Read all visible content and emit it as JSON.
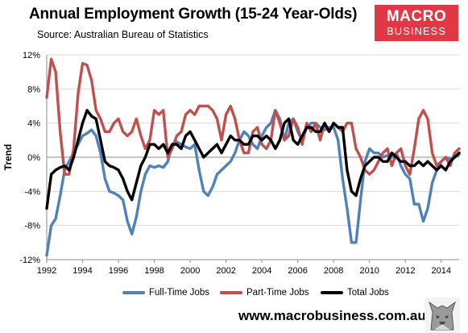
{
  "header": {
    "title": "Annual Employment Growth (15-24 Year-Olds)",
    "subtitle": "Source: Australian Bureau of Statistics",
    "logo_line1": "MACRO",
    "logo_line2": "BUSINESS"
  },
  "footer": {
    "website": "www.macrobusiness.com.au"
  },
  "colors": {
    "full_time": "#4f81bd",
    "part_time": "#c0504d",
    "total": "#000000",
    "logo_bg": "#e23744"
  },
  "chart_data": {
    "type": "line",
    "title": "Annual Employment Growth (15-24 Year-Olds)",
    "subtitle": "Source: Australian Bureau of Statistics",
    "xlabel": "",
    "ylabel": "Trend",
    "xlim": [
      1992,
      2015
    ],
    "ylim": [
      -12,
      12
    ],
    "x_ticks": [
      1992,
      1994,
      1996,
      1998,
      2000,
      2002,
      2004,
      2006,
      2008,
      2010,
      2012,
      2014
    ],
    "x_tick_labels": [
      "1992",
      "1994",
      "1996",
      "1998",
      "2000",
      "2002",
      "2004",
      "2006",
      "2008",
      "2010",
      "2012",
      "2014"
    ],
    "y_ticks": [
      -12,
      -8,
      -4,
      0,
      4,
      8,
      12
    ],
    "y_tick_labels": [
      "-12%",
      "-8%",
      "-4%",
      "0%",
      "4%",
      "8%",
      "12%"
    ],
    "grid": "horizontal",
    "legend_position": "bottom",
    "series": [
      {
        "name": "Full-Time Jobs",
        "color": "#4f81bd",
        "x": [
          1992.0,
          1992.25,
          1992.5,
          1992.75,
          1993.0,
          1993.25,
          1993.5,
          1993.75,
          1994.0,
          1994.25,
          1994.5,
          1994.75,
          1995.0,
          1995.25,
          1995.5,
          1995.75,
          1996.0,
          1996.25,
          1996.5,
          1996.75,
          1997.0,
          1997.25,
          1997.5,
          1997.75,
          1998.0,
          1998.25,
          1998.5,
          1998.75,
          1999.0,
          1999.25,
          1999.5,
          1999.75,
          2000.0,
          2000.25,
          2000.5,
          2000.75,
          2001.0,
          2001.25,
          2001.5,
          2001.75,
          2002.0,
          2002.25,
          2002.5,
          2002.75,
          2003.0,
          2003.25,
          2003.5,
          2003.75,
          2004.0,
          2004.25,
          2004.5,
          2004.75,
          2005.0,
          2005.25,
          2005.5,
          2005.75,
          2006.0,
          2006.25,
          2006.5,
          2006.75,
          2007.0,
          2007.25,
          2007.5,
          2007.75,
          2008.0,
          2008.25,
          2008.5,
          2008.75,
          2009.0,
          2009.25,
          2009.5,
          2009.75,
          2010.0,
          2010.25,
          2010.5,
          2010.75,
          2011.0,
          2011.25,
          2011.5,
          2011.75,
          2012.0,
          2012.25,
          2012.5,
          2012.75,
          2013.0,
          2013.25,
          2013.5,
          2013.75,
          2014.0,
          2014.25,
          2014.5,
          2014.75,
          2015.0
        ],
        "values": [
          -11.5,
          -8.0,
          -7.2,
          -4.5,
          -1.5,
          -0.5,
          0.5,
          1.5,
          2.5,
          2.8,
          3.2,
          2.5,
          0.5,
          -2.5,
          -4.0,
          -4.2,
          -4.5,
          -5.0,
          -7.5,
          -9.0,
          -7.0,
          -4.0,
          -2.0,
          -1.0,
          -1.2,
          -1.0,
          -1.2,
          -0.5,
          1.5,
          1.8,
          1.5,
          1.2,
          1.0,
          1.5,
          -1.5,
          -4.0,
          -4.5,
          -3.5,
          -2.0,
          -1.5,
          -1.0,
          -0.5,
          0.5,
          2.0,
          3.0,
          2.5,
          1.5,
          1.0,
          2.5,
          3.5,
          4.0,
          5.5,
          4.5,
          2.0,
          4.0,
          4.5,
          3.0,
          2.0,
          3.5,
          4.0,
          4.0,
          3.5,
          3.2,
          3.5,
          3.5,
          2.0,
          -2.5,
          -6.0,
          -10.0,
          -10.0,
          -5.0,
          -0.5,
          1.0,
          0.5,
          0.5,
          0.0,
          0.2,
          0.0,
          0.5,
          -1.0,
          -2.0,
          -2.5,
          -5.5,
          -5.5,
          -7.5,
          -6.0,
          -3.0,
          -1.5,
          -0.5,
          0.0,
          -0.2,
          0.0,
          0.3
        ]
      },
      {
        "name": "Part-Time Jobs",
        "color": "#c0504d",
        "x": [
          1992.0,
          1992.25,
          1992.5,
          1992.75,
          1993.0,
          1993.25,
          1993.5,
          1993.75,
          1994.0,
          1994.25,
          1994.5,
          1994.75,
          1995.0,
          1995.25,
          1995.5,
          1995.75,
          1996.0,
          1996.25,
          1996.5,
          1996.75,
          1997.0,
          1997.25,
          1997.5,
          1997.75,
          1998.0,
          1998.25,
          1998.5,
          1998.75,
          1999.0,
          1999.25,
          1999.5,
          1999.75,
          2000.0,
          2000.25,
          2000.5,
          2000.75,
          2001.0,
          2001.25,
          2001.5,
          2001.75,
          2002.0,
          2002.25,
          2002.5,
          2002.75,
          2003.0,
          2003.25,
          2003.5,
          2003.75,
          2004.0,
          2004.25,
          2004.5,
          2004.75,
          2005.0,
          2005.25,
          2005.5,
          2005.75,
          2006.0,
          2006.25,
          2006.5,
          2006.75,
          2007.0,
          2007.25,
          2007.5,
          2007.75,
          2008.0,
          2008.25,
          2008.5,
          2008.75,
          2009.0,
          2009.25,
          2009.5,
          2009.75,
          2010.0,
          2010.25,
          2010.5,
          2010.75,
          2011.0,
          2011.25,
          2011.5,
          2011.75,
          2012.0,
          2012.25,
          2012.5,
          2012.75,
          2013.0,
          2013.25,
          2013.5,
          2013.75,
          2014.0,
          2014.25,
          2014.5,
          2014.75,
          2015.0
        ],
        "values": [
          7.0,
          11.5,
          10.0,
          3.0,
          -2.0,
          -2.0,
          1.0,
          7.5,
          11.0,
          10.8,
          9.0,
          5.5,
          4.5,
          3.0,
          3.0,
          4.0,
          4.5,
          3.0,
          2.5,
          3.0,
          4.5,
          2.5,
          1.0,
          2.0,
          5.5,
          5.0,
          5.5,
          0.0,
          1.0,
          2.5,
          3.0,
          5.0,
          5.5,
          5.0,
          6.0,
          6.0,
          6.0,
          5.5,
          4.5,
          2.0,
          5.0,
          6.0,
          4.5,
          2.0,
          0.5,
          0.5,
          3.0,
          3.5,
          1.5,
          1.0,
          2.0,
          5.5,
          4.0,
          2.0,
          2.5,
          4.5,
          3.5,
          1.5,
          4.0,
          3.0,
          4.0,
          2.0,
          4.0,
          3.0,
          4.0,
          3.5,
          3.0,
          4.0,
          4.0,
          1.0,
          0.0,
          -1.5,
          -2.0,
          -1.5,
          -0.5,
          0.5,
          1.0,
          -1.0,
          0.5,
          1.0,
          -1.0,
          -2.0,
          1.0,
          4.5,
          5.5,
          4.5,
          0.5,
          -1.0,
          -0.5,
          0.0,
          -1.0,
          0.5,
          1.0
        ]
      },
      {
        "name": "Total Jobs",
        "color": "#000000",
        "x": [
          1992.0,
          1992.25,
          1992.5,
          1992.75,
          1993.0,
          1993.25,
          1993.5,
          1993.75,
          1994.0,
          1994.25,
          1994.5,
          1994.75,
          1995.0,
          1995.25,
          1995.5,
          1995.75,
          1996.0,
          1996.25,
          1996.5,
          1996.75,
          1997.0,
          1997.25,
          1997.5,
          1997.75,
          1998.0,
          1998.25,
          1998.5,
          1998.75,
          1999.0,
          1999.25,
          1999.5,
          1999.75,
          2000.0,
          2000.25,
          2000.5,
          2000.75,
          2001.0,
          2001.25,
          2001.5,
          2001.75,
          2002.0,
          2002.25,
          2002.5,
          2002.75,
          2003.0,
          2003.25,
          2003.5,
          2003.75,
          2004.0,
          2004.25,
          2004.5,
          2004.75,
          2005.0,
          2005.25,
          2005.5,
          2005.75,
          2006.0,
          2006.25,
          2006.5,
          2006.75,
          2007.0,
          2007.25,
          2007.5,
          2007.75,
          2008.0,
          2008.25,
          2008.5,
          2008.75,
          2009.0,
          2009.25,
          2009.5,
          2009.75,
          2010.0,
          2010.25,
          2010.5,
          2010.75,
          2011.0,
          2011.25,
          2011.5,
          2011.75,
          2012.0,
          2012.25,
          2012.5,
          2012.75,
          2013.0,
          2013.25,
          2013.5,
          2013.75,
          2014.0,
          2014.25,
          2014.5,
          2014.75,
          2015.0
        ],
        "values": [
          -6.0,
          -2.0,
          -1.5,
          -1.2,
          -1.0,
          -1.5,
          0.0,
          2.0,
          4.0,
          5.5,
          4.8,
          4.5,
          2.0,
          -0.5,
          -1.0,
          -1.2,
          -1.5,
          -2.5,
          -4.0,
          -5.0,
          -3.0,
          -1.0,
          0.0,
          1.5,
          1.5,
          1.0,
          1.5,
          0.5,
          1.5,
          1.5,
          1.0,
          2.5,
          3.0,
          2.0,
          1.0,
          0.0,
          0.5,
          1.0,
          1.5,
          0.5,
          1.5,
          2.5,
          2.0,
          2.0,
          1.5,
          1.5,
          2.5,
          2.5,
          2.0,
          2.5,
          2.0,
          1.0,
          2.0,
          4.0,
          4.5,
          2.0,
          1.5,
          2.5,
          3.5,
          3.5,
          3.0,
          3.0,
          4.0,
          3.0,
          4.0,
          3.5,
          3.5,
          -1.5,
          -4.0,
          -4.5,
          -2.5,
          -1.0,
          -0.5,
          0.0,
          0.0,
          -0.5,
          -0.5,
          0.5,
          0.0,
          -0.5,
          -0.5,
          -1.0,
          -1.0,
          -0.5,
          -1.0,
          -0.5,
          -1.0,
          -1.5,
          -1.0,
          -1.5,
          -0.5,
          0.0,
          0.5
        ]
      }
    ]
  }
}
